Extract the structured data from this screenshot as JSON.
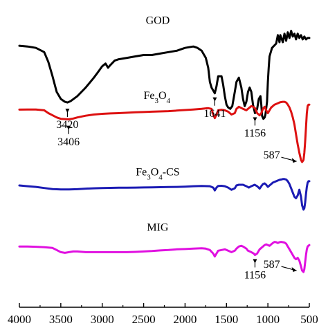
{
  "chart_data": {
    "type": "line",
    "title": "",
    "xlabel": "",
    "ylabel": "",
    "xlim": [
      4000,
      500
    ],
    "xticks": [
      4000,
      3500,
      3000,
      2500,
      2000,
      1500,
      1000,
      500
    ],
    "xtick_labels": [
      "4000",
      "3500",
      "3000",
      "2500",
      "2000",
      "1500",
      "1000",
      "500"
    ],
    "yticks": false,
    "grid": false,
    "series": [
      {
        "name": "GOD",
        "name_parts": [
          "GOD",
          "",
          "",
          ""
        ],
        "color": "#000000",
        "label_x": 2330,
        "label_level": 0.93,
        "x": [
          4000,
          3900,
          3800,
          3700,
          3650,
          3600,
          3550,
          3500,
          3450,
          3420,
          3380,
          3300,
          3200,
          3100,
          3050,
          3000,
          2960,
          2930,
          2900,
          2850,
          2800,
          2700,
          2600,
          2500,
          2400,
          2300,
          2200,
          2100,
          2000,
          1900,
          1850,
          1800,
          1750,
          1720,
          1700,
          1680,
          1660,
          1641,
          1620,
          1600,
          1560,
          1540,
          1520,
          1500,
          1480,
          1455,
          1430,
          1400,
          1380,
          1350,
          1320,
          1300,
          1280,
          1260,
          1240,
          1220,
          1200,
          1180,
          1156,
          1130,
          1110,
          1090,
          1080,
          1070,
          1055,
          1040,
          1030,
          1010,
          1000,
          990,
          980,
          950,
          900,
          880,
          860,
          850,
          820,
          800,
          780,
          760,
          740,
          720,
          700,
          680,
          660,
          640,
          620,
          600,
          580,
          560,
          540,
          520,
          500
        ],
        "y": [
          0.775,
          0.77,
          0.76,
          0.73,
          0.66,
          0.56,
          0.45,
          0.4,
          0.38,
          0.375,
          0.385,
          0.42,
          0.48,
          0.55,
          0.59,
          0.63,
          0.65,
          0.62,
          0.64,
          0.67,
          0.68,
          0.69,
          0.7,
          0.71,
          0.71,
          0.72,
          0.73,
          0.74,
          0.76,
          0.77,
          0.76,
          0.74,
          0.69,
          0.62,
          0.52,
          0.48,
          0.46,
          0.44,
          0.49,
          0.56,
          0.56,
          0.5,
          0.42,
          0.36,
          0.34,
          0.33,
          0.35,
          0.45,
          0.52,
          0.55,
          0.48,
          0.4,
          0.35,
          0.38,
          0.45,
          0.48,
          0.45,
          0.36,
          0.3,
          0.33,
          0.4,
          0.42,
          0.36,
          0.28,
          0.26,
          0.27,
          0.29,
          0.38,
          0.52,
          0.62,
          0.7,
          0.76,
          0.79,
          0.85,
          0.8,
          0.85,
          0.8,
          0.86,
          0.81,
          0.87,
          0.83,
          0.88,
          0.84,
          0.86,
          0.82,
          0.86,
          0.83,
          0.85,
          0.82,
          0.84,
          0.82,
          0.83,
          0.83
        ]
      },
      {
        "name": "Fe3O4",
        "name_parts": [
          "Fe",
          "3",
          "O",
          "4"
        ],
        "color": "#dd1111",
        "label_x": 2340,
        "label_level": 0.4,
        "x": [
          4000,
          3900,
          3800,
          3700,
          3650,
          3600,
          3550,
          3500,
          3450,
          3406,
          3350,
          3300,
          3200,
          3100,
          3000,
          2900,
          2800,
          2700,
          2600,
          2500,
          2400,
          2300,
          2200,
          2100,
          2000,
          1900,
          1800,
          1720,
          1680,
          1660,
          1641,
          1620,
          1600,
          1560,
          1520,
          1480,
          1440,
          1400,
          1380,
          1350,
          1300,
          1260,
          1240,
          1220,
          1200,
          1180,
          1156,
          1130,
          1100,
          1080,
          1060,
          1040,
          1020,
          1000,
          980,
          960,
          940,
          920,
          900,
          880,
          860,
          840,
          820,
          800,
          780,
          760,
          740,
          720,
          700,
          680,
          660,
          640,
          620,
          600,
          587,
          570,
          560,
          550,
          540,
          530,
          520,
          510,
          500
        ],
        "y": [
          0.325,
          0.326,
          0.326,
          0.32,
          0.3,
          0.285,
          0.27,
          0.26,
          0.258,
          0.256,
          0.262,
          0.27,
          0.282,
          0.29,
          0.295,
          0.298,
          0.3,
          0.303,
          0.306,
          0.308,
          0.31,
          0.312,
          0.314,
          0.318,
          0.322,
          0.326,
          0.33,
          0.335,
          0.33,
          0.29,
          0.265,
          0.29,
          0.32,
          0.324,
          0.32,
          0.31,
          0.29,
          0.3,
          0.33,
          0.345,
          0.33,
          0.32,
          0.33,
          0.34,
          0.35,
          0.345,
          0.335,
          0.3,
          0.285,
          0.3,
          0.33,
          0.345,
          0.32,
          0.3,
          0.32,
          0.34,
          0.35,
          0.36,
          0.365,
          0.37,
          0.375,
          0.378,
          0.38,
          0.38,
          0.375,
          0.36,
          0.34,
          0.31,
          0.27,
          0.22,
          0.15,
          0.08,
          0.02,
          -0.03,
          -0.045,
          -0.03,
          0.02,
          0.1,
          0.2,
          0.3,
          0.35,
          0.36,
          0.36
        ]
      },
      {
        "name": "Fe3O4-CS",
        "name_parts": [
          "Fe",
          "3",
          "O",
          "4",
          "-CS"
        ],
        "color": "#1b1bb4",
        "label_x": 2330,
        "label_level": -0.14,
        "x": [
          4000,
          3900,
          3800,
          3700,
          3600,
          3500,
          3400,
          3300,
          3200,
          3100,
          3000,
          2900,
          2800,
          2700,
          2600,
          2500,
          2400,
          2300,
          2200,
          2100,
          2000,
          1900,
          1800,
          1700,
          1660,
          1641,
          1620,
          1600,
          1560,
          1520,
          1480,
          1440,
          1400,
          1380,
          1350,
          1300,
          1260,
          1230,
          1200,
          1160,
          1130,
          1100,
          1080,
          1060,
          1040,
          1020,
          1000,
          980,
          960,
          940,
          920,
          900,
          880,
          860,
          840,
          820,
          800,
          780,
          760,
          740,
          720,
          700,
          680,
          660,
          640,
          620,
          600,
          587,
          570,
          560,
          550,
          540,
          530,
          520,
          510,
          500
        ],
        "y": [
          -0.21,
          -0.215,
          -0.22,
          -0.228,
          -0.235,
          -0.238,
          -0.238,
          -0.236,
          -0.232,
          -0.23,
          -0.228,
          -0.227,
          -0.226,
          -0.226,
          -0.225,
          -0.224,
          -0.223,
          -0.222,
          -0.221,
          -0.22,
          -0.218,
          -0.215,
          -0.213,
          -0.215,
          -0.225,
          -0.245,
          -0.225,
          -0.213,
          -0.212,
          -0.215,
          -0.225,
          -0.24,
          -0.23,
          -0.21,
          -0.205,
          -0.205,
          -0.215,
          -0.225,
          -0.215,
          -0.205,
          -0.215,
          -0.232,
          -0.215,
          -0.2,
          -0.195,
          -0.205,
          -0.22,
          -0.21,
          -0.2,
          -0.19,
          -0.185,
          -0.18,
          -0.175,
          -0.17,
          -0.168,
          -0.165,
          -0.165,
          -0.168,
          -0.18,
          -0.2,
          -0.23,
          -0.26,
          -0.29,
          -0.3,
          -0.28,
          -0.24,
          -0.29,
          -0.35,
          -0.38,
          -0.37,
          -0.33,
          -0.27,
          -0.22,
          -0.19,
          -0.18,
          -0.18
        ]
      },
      {
        "name": "MIG",
        "name_parts": [
          "MIG",
          "",
          "",
          ""
        ],
        "color": "#e010e0",
        "label_x": 2330,
        "label_level": -0.53,
        "x": [
          4000,
          3900,
          3800,
          3700,
          3600,
          3550,
          3500,
          3450,
          3400,
          3350,
          3300,
          3200,
          3100,
          3000,
          2900,
          2800,
          2700,
          2600,
          2500,
          2400,
          2300,
          2200,
          2100,
          2000,
          1900,
          1800,
          1750,
          1700,
          1660,
          1641,
          1620,
          1600,
          1560,
          1520,
          1480,
          1440,
          1400,
          1380,
          1350,
          1320,
          1300,
          1260,
          1240,
          1200,
          1170,
          1156,
          1130,
          1100,
          1080,
          1060,
          1040,
          1020,
          1000,
          980,
          960,
          940,
          920,
          900,
          880,
          860,
          840,
          820,
          800,
          780,
          760,
          740,
          720,
          700,
          680,
          660,
          640,
          620,
          600,
          587,
          570,
          560,
          550,
          540,
          530,
          520,
          510,
          500
        ],
        "y": [
          -0.64,
          -0.64,
          -0.642,
          -0.645,
          -0.65,
          -0.665,
          -0.68,
          -0.685,
          -0.68,
          -0.675,
          -0.675,
          -0.68,
          -0.68,
          -0.68,
          -0.68,
          -0.68,
          -0.68,
          -0.678,
          -0.675,
          -0.672,
          -0.668,
          -0.665,
          -0.66,
          -0.658,
          -0.655,
          -0.652,
          -0.655,
          -0.665,
          -0.69,
          -0.71,
          -0.69,
          -0.67,
          -0.665,
          -0.66,
          -0.67,
          -0.68,
          -0.67,
          -0.655,
          -0.64,
          -0.635,
          -0.64,
          -0.655,
          -0.67,
          -0.68,
          -0.69,
          -0.7,
          -0.69,
          -0.66,
          -0.65,
          -0.64,
          -0.63,
          -0.625,
          -0.63,
          -0.635,
          -0.625,
          -0.615,
          -0.608,
          -0.61,
          -0.615,
          -0.61,
          -0.608,
          -0.61,
          -0.612,
          -0.62,
          -0.64,
          -0.66,
          -0.68,
          -0.7,
          -0.72,
          -0.73,
          -0.72,
          -0.74,
          -0.78,
          -0.81,
          -0.82,
          -0.8,
          -0.75,
          -0.7,
          -0.66,
          -0.64,
          -0.635,
          -0.63
        ]
      }
    ],
    "annotations": [
      {
        "text": "3420",
        "x": 3420,
        "arrow_level": 0.37,
        "text_level": 0.22,
        "dir": "down"
      },
      {
        "text": "3406",
        "x": 3406,
        "arrow_level": 0.25,
        "text_level": 0.1,
        "dir": "down"
      },
      {
        "text": "1641",
        "x": 1641,
        "arrow_level": 0.45,
        "text_level": 0.3,
        "dir": "down"
      },
      {
        "text": "1156",
        "x": 1156,
        "arrow_level": 0.31,
        "text_level": 0.2,
        "dir": "down"
      },
      {
        "text": "1156",
        "x": 1156,
        "arrow_level": -0.69,
        "text_level": -0.78,
        "dir": "down"
      },
      {
        "text": "587",
        "x": 587,
        "arrow_level": -0.04,
        "text_level": -0.04,
        "dir": "left"
      },
      {
        "text": "587",
        "x": 587,
        "arrow_level": -0.81,
        "text_level": -0.9,
        "dir": "left"
      }
    ]
  }
}
